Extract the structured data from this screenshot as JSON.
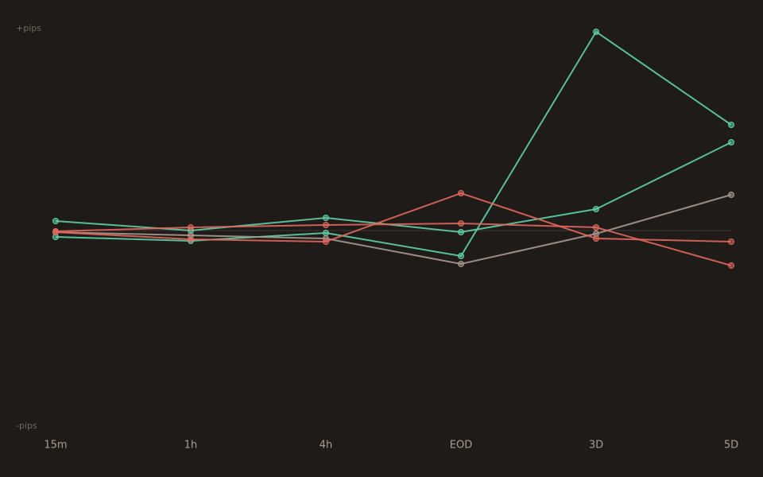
{
  "chart_data": {
    "type": "line",
    "y_top_label": "+pips",
    "y_bottom_label": "-pips",
    "categories": [
      "15m",
      "1h",
      "4h",
      "EOD",
      "3D",
      "5D"
    ],
    "ylim": [
      -100,
      100
    ],
    "zero_line": true,
    "series": [
      {
        "color": "#5fd0a6",
        "values": [
          -3.2,
          -5.2,
          -1.2,
          -12.8,
          100,
          53.2
        ]
      },
      {
        "color": "#5fd0a6",
        "values": [
          4.8,
          0,
          6.4,
          -0.8,
          10.8,
          44.4
        ]
      },
      {
        "color": "#a8998f",
        "values": [
          -0.8,
          -2.4,
          -4,
          -16.8,
          -1.6,
          18
        ]
      },
      {
        "color": "#e0675d",
        "values": [
          -0.8,
          -4.4,
          -5.6,
          18.8,
          -4,
          -5.6
        ]
      },
      {
        "color": "#e0675d",
        "values": [
          -0.4,
          1.6,
          2.8,
          3.6,
          1.6,
          -17.6
        ]
      }
    ]
  }
}
